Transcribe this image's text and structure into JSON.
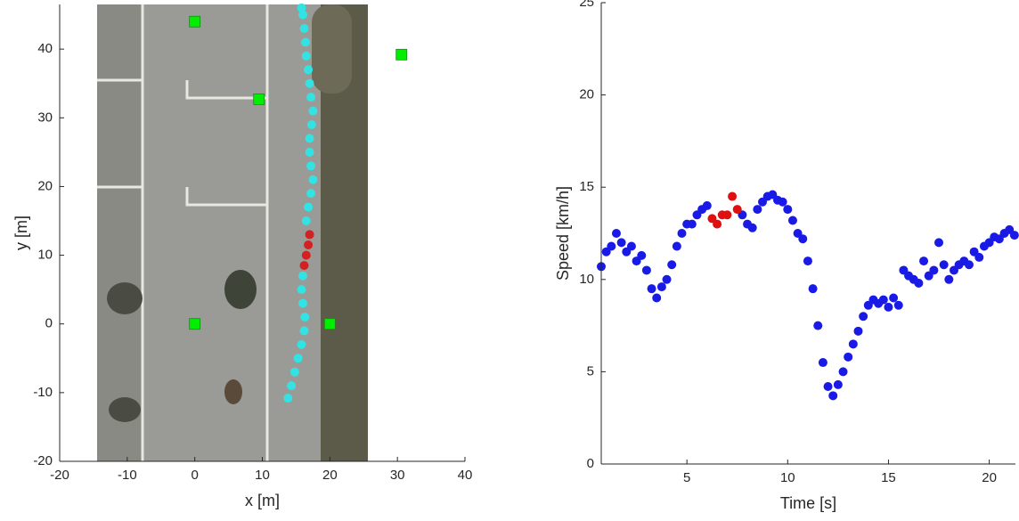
{
  "chart_data": [
    {
      "type": "scatter",
      "xlabel": "x [m]",
      "ylabel": "y [m]",
      "xlim": [
        -20,
        40
      ],
      "ylim": [
        -20,
        46.5
      ],
      "xticks": [
        -20,
        -10,
        0,
        10,
        20,
        30,
        40
      ],
      "yticks": [
        -20,
        -10,
        0,
        10,
        20,
        30,
        40
      ],
      "series": [
        {
          "color": "#33e3e3",
          "marker": "circle",
          "x": [
            13.8,
            14.3,
            14.8,
            15.3,
            15.8,
            16.2,
            16.3,
            16.0,
            15.8,
            16.0,
            16.5,
            16.8,
            17.2,
            17.5,
            17.2,
            17.0,
            17.0,
            17.3,
            17.5,
            17.2,
            17.0,
            16.8,
            16.5,
            16.4,
            16.2,
            16.0,
            15.8
          ],
          "values": [
            -10.8,
            -9,
            -7,
            -5,
            -3,
            -1,
            1,
            3,
            5,
            7,
            15,
            17,
            19,
            21,
            23,
            25,
            27,
            29,
            31,
            33,
            35,
            37,
            39,
            41,
            43,
            45,
            46
          ]
        },
        {
          "color": "#d42020",
          "marker": "circle",
          "x": [
            16.2,
            16.5,
            16.8,
            17.0
          ],
          "values": [
            8.5,
            10,
            11.5,
            13
          ]
        },
        {
          "color": "#00ee00",
          "marker": "square",
          "x": [
            0,
            9.5,
            30.6,
            0,
            20
          ],
          "values": [
            44,
            32.7,
            39.2,
            0,
            0
          ]
        }
      ]
    },
    {
      "type": "scatter",
      "xlabel": "Time [s]",
      "ylabel": "Speed [km/h]",
      "xlim": [
        0.75,
        21.3
      ],
      "ylim": [
        0,
        25
      ],
      "xticks": [
        5,
        10,
        15,
        20
      ],
      "yticks": [
        0,
        5,
        10,
        15,
        20,
        25
      ],
      "series": [
        {
          "color": "#1a1ae6",
          "marker": "circle",
          "x": [
            0.75,
            1.0,
            1.25,
            1.5,
            1.75,
            2.0,
            2.25,
            2.5,
            2.75,
            3.0,
            3.25,
            3.5,
            3.75,
            4.0,
            4.25,
            4.5,
            4.75,
            5.0,
            5.25,
            5.5,
            5.75,
            6.0,
            7.75,
            8.0,
            8.25,
            8.5,
            8.75,
            9.0,
            9.25,
            9.5,
            9.75,
            10.0,
            10.25,
            10.5,
            10.75,
            11.0,
            11.25,
            11.5,
            11.75,
            12.0,
            12.25,
            12.5,
            12.75,
            13.0,
            13.25,
            13.5,
            13.75,
            14.0,
            14.25,
            14.5,
            14.75,
            15.0,
            15.25,
            15.5,
            15.75,
            16.0,
            16.25,
            16.5,
            16.75,
            17.0,
            17.25,
            17.5,
            17.75,
            18.0,
            18.25,
            18.5,
            18.75,
            19.0,
            19.25,
            19.5,
            19.75,
            20.0,
            20.25,
            20.5,
            20.75,
            21.0,
            21.25
          ],
          "values": [
            10.7,
            11.5,
            11.8,
            12.5,
            12.0,
            11.5,
            11.8,
            11.0,
            11.3,
            10.5,
            9.5,
            9.0,
            9.6,
            10.0,
            10.8,
            11.8,
            12.5,
            13.0,
            13.0,
            13.5,
            13.8,
            14.0,
            13.5,
            13.0,
            12.8,
            13.8,
            14.2,
            14.5,
            14.6,
            14.3,
            14.2,
            13.8,
            13.2,
            12.5,
            12.2,
            11.0,
            9.5,
            7.5,
            5.5,
            4.2,
            3.7,
            4.3,
            5.0,
            5.8,
            6.5,
            7.2,
            8.0,
            8.6,
            8.9,
            8.7,
            8.9,
            8.5,
            9.0,
            8.6,
            10.5,
            10.2,
            10.0,
            9.8,
            11.0,
            10.2,
            10.5,
            12.0,
            10.8,
            10.0,
            10.5,
            10.8,
            11.0,
            10.8,
            11.5,
            11.2,
            11.8,
            12.0,
            12.3,
            12.2,
            12.5,
            12.7,
            12.4
          ]
        },
        {
          "color": "#e01010",
          "marker": "circle",
          "x": [
            6.25,
            6.5,
            6.75,
            7.0,
            7.25,
            7.5
          ],
          "values": [
            13.3,
            13.0,
            13.5,
            13.5,
            14.5,
            13.8
          ]
        }
      ]
    }
  ]
}
